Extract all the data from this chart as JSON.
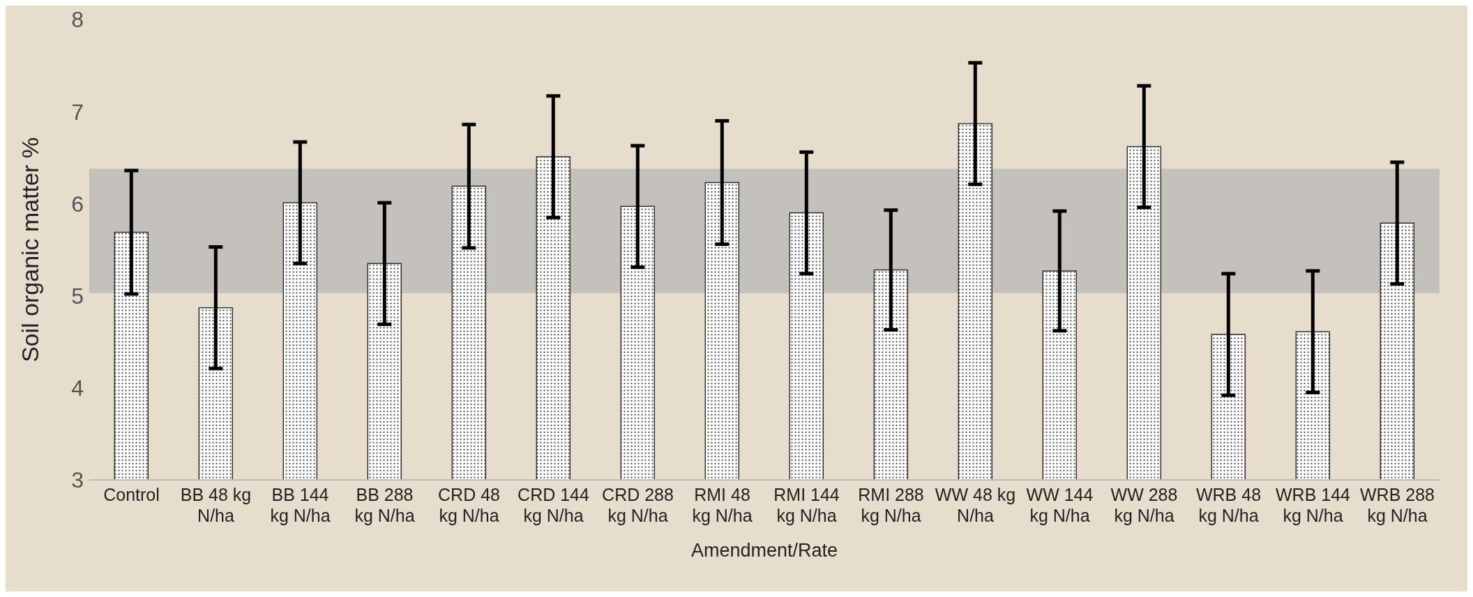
{
  "chart_data": {
    "type": "bar",
    "xlabel": "Amendment/Rate",
    "ylabel": "Soil organic matter %",
    "categories": [
      "Control",
      "BB 48 kg N/ha",
      "BB 144 kg N/ha",
      "BB 288 kg N/ha",
      "CRD 48 kg N/ha",
      "CRD 144 kg N/ha",
      "CRD 288 kg N/ha",
      "RMI 48 kg N/ha",
      "RMI 144 kg N/ha",
      "RMI 288 kg N/ha",
      "WW 48 kg N/ha",
      "WW 144 kg N/ha",
      "WW 288 kg N/ha",
      "WRB 48 kg N/ha",
      "WRB 144 kg N/ha",
      "WRB 288 kg N/ha"
    ],
    "series": [
      {
        "color": "#333333",
        "values": [
          5.69,
          4.87,
          6.01,
          5.35,
          6.19,
          6.51,
          5.97,
          6.23,
          5.9,
          5.28,
          6.87,
          5.27,
          6.62,
          4.58,
          4.61,
          5.79
        ],
        "errors": [
          0.67,
          0.66,
          0.66,
          0.66,
          0.67,
          0.66,
          0.66,
          0.67,
          0.66,
          0.65,
          0.66,
          0.65,
          0.66,
          0.66,
          0.66,
          0.66
        ]
      }
    ],
    "ylim": [
      3,
      8
    ],
    "yticks": [
      3,
      4,
      5,
      6,
      7,
      8
    ],
    "grid": false,
    "legend": false,
    "bands": [
      {
        "axis": "y",
        "from": 5.03,
        "to": 6.38,
        "color": "#b5b5b5"
      }
    ]
  }
}
